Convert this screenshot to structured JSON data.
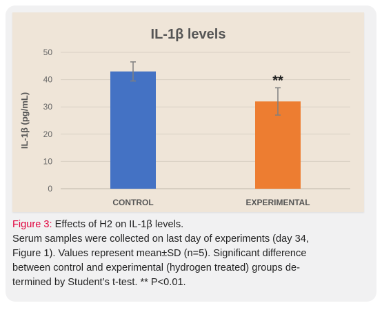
{
  "colors": {
    "control_bar": "#4472c4",
    "experimental_bar": "#ed7d31",
    "figure_label": "#e0003c",
    "panel_background": "#efe5d8",
    "card_background": "#f1f1f2"
  },
  "chart_data": {
    "type": "bar",
    "title": "IL-1β levels",
    "ylabel": "IL-1β (pg/mL)",
    "xlabel": "",
    "categories": [
      "CONTROL",
      "EXPERIMENTAL"
    ],
    "values": [
      43,
      32
    ],
    "error": [
      3.5,
      5
    ],
    "annotations": [
      "",
      "**"
    ],
    "ylim": [
      0,
      50
    ],
    "yticks": [
      0,
      10,
      20,
      30,
      40,
      50
    ],
    "grid": true,
    "legend": "none"
  },
  "caption": {
    "figure_label": "Figure 3:",
    "lines": [
      "Effects of H2 on IL-1β levels.",
      "Serum samples were collected on last day of experiments (day 34,",
      "Figure 1). Values represent mean±SD (n=5). Significant difference",
      "between control and experimental (hydrogen treated) groups de-",
      "termined by Student’s t-test. ** P<0.01."
    ]
  }
}
